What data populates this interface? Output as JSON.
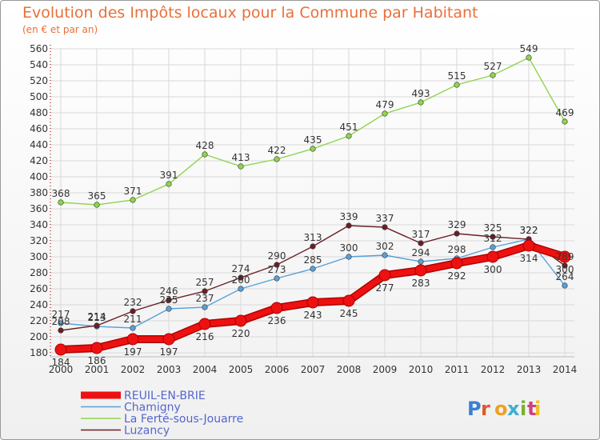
{
  "chart": {
    "title": "Evolution des Impôts locaux pour la Commune par Habitant",
    "subtitle": "(en € et par an)",
    "watermark": "Proxiti"
  },
  "chart_data": {
    "type": "line",
    "x": [
      2000,
      2001,
      2002,
      2003,
      2004,
      2005,
      2006,
      2007,
      2008,
      2009,
      2010,
      2011,
      2012,
      2013,
      2014
    ],
    "ylim": [
      180,
      560
    ],
    "yticks": [
      180,
      200,
      220,
      240,
      260,
      280,
      300,
      320,
      340,
      360,
      380,
      400,
      420,
      440,
      460,
      480,
      500,
      520,
      540,
      560
    ],
    "grid": true,
    "legend": "bottom-left",
    "series": [
      {
        "name": "La Ferté-sous-Jouarre",
        "color": "#8fd44e",
        "values": [
          368,
          365,
          371,
          391,
          428,
          413,
          422,
          435,
          451,
          479,
          493,
          515,
          527,
          549,
          469
        ]
      },
      {
        "name": "Chamigny",
        "color": "#5aa0d8",
        "values": [
          217,
          213,
          211,
          235,
          237,
          260,
          273,
          285,
          300,
          302,
          294,
          298,
          312,
          322,
          264
        ]
      },
      {
        "name": "Luzancy",
        "color": "#6b1f24",
        "values": [
          208,
          214,
          232,
          246,
          257,
          274,
          290,
          313,
          339,
          337,
          317,
          329,
          325,
          322,
          289
        ]
      },
      {
        "name": "REUIL-EN-BRIE",
        "color": "#ee1111",
        "values": [
          184,
          186,
          197,
          197,
          216,
          220,
          236,
          243,
          245,
          277,
          283,
          292,
          300,
          314,
          300
        ]
      }
    ]
  }
}
